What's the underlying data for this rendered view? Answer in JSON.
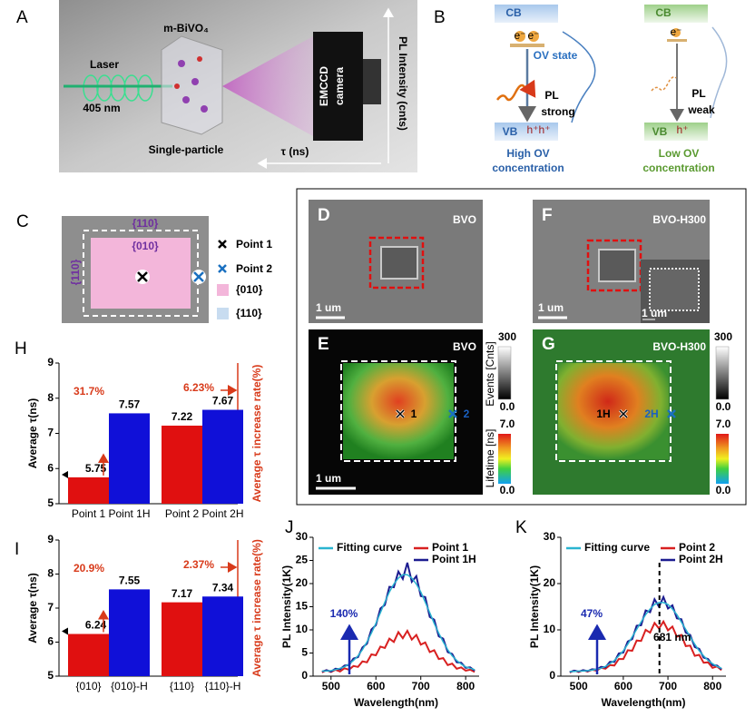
{
  "panels": {
    "a": {
      "label": "A",
      "laser": "Laser",
      "wavelength": "405 nm",
      "crystal": "m-BiVO₄",
      "particle": "Single-particle",
      "camera_top": "EMCCD",
      "camera": "camera",
      "y_axis": "PL Intensity (cnts)",
      "x_axis": "τ (ns)"
    },
    "b": {
      "label": "B",
      "high": {
        "cb": "CB",
        "vb": "VB",
        "electron": "e⁻",
        "hole": "h⁺",
        "ov": "OV state",
        "pl": "PL",
        "strength": "strong",
        "caption_1": "High OV",
        "caption_2": "concentration"
      },
      "low": {
        "cb": "CB",
        "vb": "VB",
        "electron": "e⁻",
        "hole": "h⁺",
        "pl": "PL",
        "strength": "weak",
        "caption_1": "Low OV",
        "caption_2": "concentration"
      }
    },
    "c": {
      "label": "C",
      "facet_top": "{110}",
      "facet_center": "{010}",
      "facet_left": "{110}",
      "legend": [
        "Point 1",
        "Point 2",
        "{010}",
        "{110}"
      ]
    },
    "d": {
      "label": "D",
      "title": "BVO",
      "scale": "1 um"
    },
    "e": {
      "label": "E",
      "title": "BVO",
      "point_1": "1",
      "point_2": "2",
      "scale": "1 um"
    },
    "f": {
      "label": "F",
      "title": "BVO-H300",
      "scale": "1 um",
      "inset_scale": "1 um"
    },
    "g": {
      "label": "G",
      "title": "BVO-H300",
      "point_1": "1H",
      "point_2": "2H"
    },
    "colorbar_e": {
      "events_max": "300",
      "events_min": "0.0",
      "events_label": "Events [Cnts]",
      "lifetime_max": "7.0",
      "lifetime_min": "0.0",
      "lifetime_label": "Lifetime [ns]"
    },
    "colorbar_g": {
      "events_max": "300",
      "events_min": "0.0",
      "lifetime_max": "7.0",
      "lifetime_min": "0.0"
    }
  },
  "chart_data": [
    {
      "type": "bar",
      "label": "H",
      "categories": [
        "Point 1",
        "Point 1H",
        "Point 2",
        "Point 2H"
      ],
      "values": [
        5.75,
        7.57,
        7.22,
        7.67
      ],
      "colors": [
        "#e01010",
        "#1010d8",
        "#e01010",
        "#1010d8"
      ],
      "ylim": [
        5,
        9
      ],
      "yticks": [
        5,
        6,
        7,
        8,
        9
      ],
      "ylabel": "Average τ(ns)",
      "y2label": "Average τ increase rate(%)",
      "increase_labels": [
        "31.7%",
        "6.23%"
      ]
    },
    {
      "type": "bar",
      "label": "I",
      "categories": [
        "{010}",
        "{010}-H",
        "{110}",
        "{110}-H"
      ],
      "values": [
        6.24,
        7.55,
        7.17,
        7.34
      ],
      "colors": [
        "#e01010",
        "#1010d8",
        "#e01010",
        "#1010d8"
      ],
      "ylim": [
        5,
        9
      ],
      "yticks": [
        5,
        6,
        7,
        8,
        9
      ],
      "ylabel": "Average τ(ns)",
      "y2label": "Average τ increase rate(%)",
      "increase_labels": [
        "20.9%",
        "2.37%"
      ]
    },
    {
      "type": "line",
      "label": "J",
      "xlabel": "Wavelength(nm)",
      "ylabel": "PL Intensity(1K)",
      "annotation": "140%",
      "x": [
        480,
        490,
        500,
        510,
        520,
        530,
        540,
        550,
        560,
        570,
        580,
        590,
        600,
        610,
        620,
        630,
        640,
        650,
        660,
        670,
        680,
        690,
        700,
        710,
        720,
        730,
        740,
        750,
        760,
        770,
        780,
        790,
        800,
        810,
        820
      ],
      "xlim": [
        460,
        830
      ],
      "xticks": [
        500,
        600,
        700,
        800
      ],
      "ylim": [
        0,
        30
      ],
      "yticks": [
        0,
        5,
        10,
        15,
        20,
        25,
        30
      ],
      "series": [
        {
          "name": "Fitting curve",
          "color": "#2ab4d0",
          "values": [
            1.1,
            1.1,
            1.2,
            1.4,
            1.7,
            2.0,
            2.6,
            3.4,
            4.4,
            5.7,
            7.4,
            9.3,
            11.4,
            13.7,
            16.0,
            18.2,
            19.9,
            21.2,
            21.9,
            21.9,
            21.2,
            19.9,
            18.2,
            16.0,
            13.7,
            11.4,
            9.3,
            7.4,
            5.7,
            4.4,
            3.4,
            2.6,
            2.0,
            1.7,
            1.4
          ]
        },
        {
          "name": "Point 1",
          "color": "#d82020",
          "values": [
            0.8,
            1.3,
            0.9,
            1.4,
            1.0,
            1.7,
            1.4,
            2.2,
            2.0,
            3.2,
            3.0,
            4.7,
            4.5,
            6.4,
            6.1,
            8.1,
            7.4,
            9.5,
            8.2,
            9.8,
            7.9,
            8.9,
            6.8,
            7.3,
            5.2,
            5.6,
            3.7,
            3.9,
            2.4,
            2.7,
            1.6,
            1.9,
            1.2,
            1.4,
            0.9
          ]
        },
        {
          "name": "Point 1H",
          "color": "#1c1c90",
          "values": [
            1.0,
            1.3,
            1.0,
            1.6,
            1.5,
            2.3,
            2.4,
            3.8,
            4.1,
            6.2,
            7.0,
            10.1,
            11.0,
            14.6,
            15.4,
            19.3,
            19.2,
            22.6,
            21.0,
            24.5,
            20.4,
            21.6,
            17.3,
            17.1,
            12.8,
            12.2,
            8.6,
            8.1,
            5.2,
            4.8,
            3.0,
            2.9,
            1.8,
            1.9,
            1.2
          ]
        }
      ]
    },
    {
      "type": "line",
      "label": "K",
      "xlabel": "Wavelength(nm)",
      "ylabel": "PL Intensity(1K)",
      "annotation": "47%",
      "peak": {
        "value": 681,
        "label": "681 nm"
      },
      "x": [
        480,
        490,
        500,
        510,
        520,
        530,
        540,
        550,
        560,
        570,
        580,
        590,
        600,
        610,
        620,
        630,
        640,
        650,
        660,
        670,
        680,
        690,
        700,
        710,
        720,
        730,
        740,
        750,
        760,
        770,
        780,
        790,
        800,
        810,
        820
      ],
      "xlim": [
        460,
        830
      ],
      "xticks": [
        500,
        600,
        700,
        800
      ],
      "ylim": [
        0,
        30
      ],
      "yticks": [
        0,
        10,
        20,
        30
      ],
      "series": [
        {
          "name": "Fitting curve",
          "color": "#2ab4d0",
          "values": [
            1.0,
            1.0,
            1.1,
            1.1,
            1.2,
            1.3,
            1.5,
            1.7,
            2.1,
            2.7,
            3.4,
            4.4,
            5.5,
            6.9,
            8.5,
            10.1,
            11.7,
            13.3,
            14.5,
            15.5,
            15.9,
            15.9,
            15.5,
            14.5,
            13.3,
            11.7,
            10.1,
            8.5,
            6.9,
            5.5,
            4.4,
            3.4,
            2.7,
            2.1,
            1.7
          ]
        },
        {
          "name": "Point 2",
          "color": "#d82020",
          "values": [
            0.8,
            1.2,
            0.9,
            1.3,
            1.0,
            1.4,
            1.2,
            1.8,
            1.6,
            2.4,
            2.3,
            3.7,
            3.7,
            5.6,
            5.5,
            7.7,
            7.6,
            10.0,
            9.4,
            11.5,
            10.3,
            11.8,
            9.9,
            10.7,
            8.5,
            8.9,
            6.5,
            6.6,
            4.4,
            4.6,
            2.9,
            3.0,
            1.8,
            2.1,
            1.3
          ]
        },
        {
          "name": "Point 2H",
          "color": "#1c1c90",
          "values": [
            0.9,
            1.2,
            1.0,
            1.3,
            1.1,
            1.5,
            1.4,
            2.0,
            1.9,
            3.1,
            3.1,
            4.9,
            5.1,
            7.5,
            8.0,
            10.9,
            11.0,
            14.2,
            13.8,
            16.6,
            15.0,
            17.1,
            14.6,
            15.3,
            12.5,
            12.3,
            9.4,
            8.9,
            6.3,
            5.9,
            4.0,
            3.7,
            2.4,
            2.3,
            1.5
          ]
        }
      ]
    }
  ]
}
